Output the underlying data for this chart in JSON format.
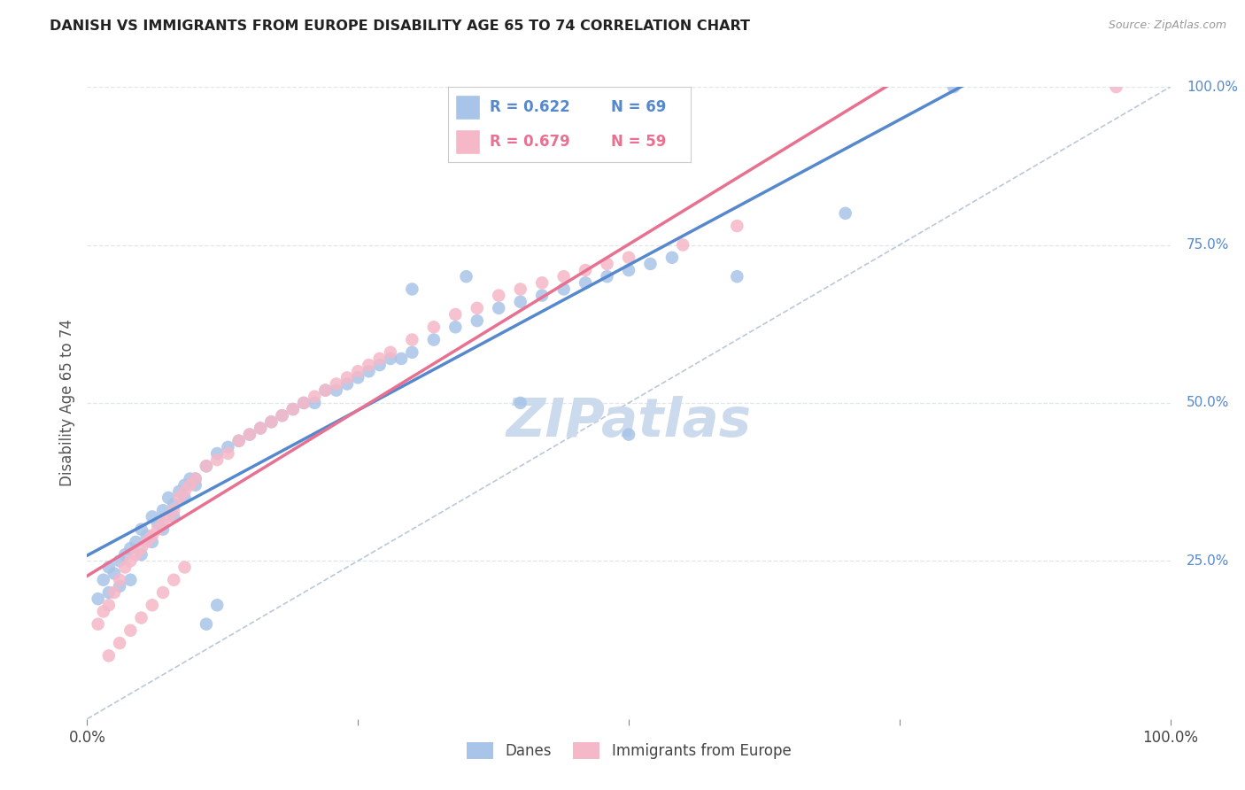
{
  "title": "DANISH VS IMMIGRANTS FROM EUROPE DISABILITY AGE 65 TO 74 CORRELATION CHART",
  "source": "Source: ZipAtlas.com",
  "ylabel": "Disability Age 65 to 74",
  "legend_label_danes": "Danes",
  "legend_label_immigrants": "Immigrants from Europe",
  "danes_R": "R = 0.622",
  "danes_N": "N = 69",
  "immigrants_R": "R = 0.679",
  "immigrants_N": "N = 59",
  "danes_color": "#a8c4e8",
  "immigrants_color": "#f5b8c8",
  "danes_line_color": "#5588cc",
  "immigrants_line_color": "#e87090",
  "diagonal_color": "#aabbcc",
  "watermark_color": "#ccdaee",
  "background_color": "#ffffff",
  "grid_color": "#e0e6ee",
  "danes_x": [
    1.5,
    2.0,
    2.5,
    3.0,
    3.5,
    4.0,
    4.5,
    5.0,
    5.5,
    6.0,
    6.5,
    7.0,
    7.5,
    8.0,
    8.5,
    9.0,
    9.5,
    10.0,
    11.0,
    12.0,
    13.0,
    14.0,
    15.0,
    16.0,
    17.0,
    18.0,
    19.0,
    20.0,
    21.0,
    22.0,
    23.0,
    24.0,
    25.0,
    26.0,
    27.0,
    28.0,
    29.0,
    30.0,
    32.0,
    34.0,
    36.0,
    38.0,
    40.0,
    42.0,
    44.0,
    46.0,
    48.0,
    50.0,
    52.0,
    54.0,
    1.0,
    2.0,
    3.0,
    4.0,
    5.0,
    6.0,
    7.0,
    8.0,
    9.0,
    10.0,
    11.0,
    12.0,
    40.0,
    50.0,
    60.0,
    70.0,
    80.0,
    30.0,
    35.0
  ],
  "danes_y": [
    22.0,
    24.0,
    23.0,
    25.0,
    26.0,
    27.0,
    28.0,
    30.0,
    29.0,
    32.0,
    31.0,
    33.0,
    35.0,
    34.0,
    36.0,
    37.0,
    38.0,
    38.0,
    40.0,
    42.0,
    43.0,
    44.0,
    45.0,
    46.0,
    47.0,
    48.0,
    49.0,
    50.0,
    50.0,
    52.0,
    52.0,
    53.0,
    54.0,
    55.0,
    56.0,
    57.0,
    57.0,
    58.0,
    60.0,
    62.0,
    63.0,
    65.0,
    66.0,
    67.0,
    68.0,
    69.0,
    70.0,
    71.0,
    72.0,
    73.0,
    19.0,
    20.0,
    21.0,
    22.0,
    26.0,
    28.0,
    30.0,
    32.0,
    35.0,
    37.0,
    15.0,
    18.0,
    50.0,
    45.0,
    70.0,
    80.0,
    100.0,
    68.0,
    70.0
  ],
  "immigrants_x": [
    1.0,
    1.5,
    2.0,
    2.5,
    3.0,
    3.5,
    4.0,
    4.5,
    5.0,
    5.5,
    6.0,
    6.5,
    7.0,
    7.5,
    8.0,
    8.5,
    9.0,
    9.5,
    10.0,
    11.0,
    12.0,
    13.0,
    14.0,
    15.0,
    16.0,
    17.0,
    18.0,
    19.0,
    20.0,
    21.0,
    22.0,
    23.0,
    24.0,
    25.0,
    26.0,
    27.0,
    28.0,
    30.0,
    32.0,
    34.0,
    36.0,
    38.0,
    40.0,
    42.0,
    44.0,
    46.0,
    48.0,
    50.0,
    55.0,
    60.0,
    2.0,
    3.0,
    4.0,
    5.0,
    6.0,
    7.0,
    8.0,
    9.0,
    95.0
  ],
  "immigrants_y": [
    15.0,
    17.0,
    18.0,
    20.0,
    22.0,
    24.0,
    25.0,
    26.0,
    27.0,
    28.0,
    29.0,
    30.0,
    31.0,
    32.0,
    33.0,
    35.0,
    36.0,
    37.0,
    38.0,
    40.0,
    41.0,
    42.0,
    44.0,
    45.0,
    46.0,
    47.0,
    48.0,
    49.0,
    50.0,
    51.0,
    52.0,
    53.0,
    54.0,
    55.0,
    56.0,
    57.0,
    58.0,
    60.0,
    62.0,
    64.0,
    65.0,
    67.0,
    68.0,
    69.0,
    70.0,
    71.0,
    72.0,
    73.0,
    75.0,
    78.0,
    10.0,
    12.0,
    14.0,
    16.0,
    18.0,
    20.0,
    22.0,
    24.0,
    100.0
  ]
}
